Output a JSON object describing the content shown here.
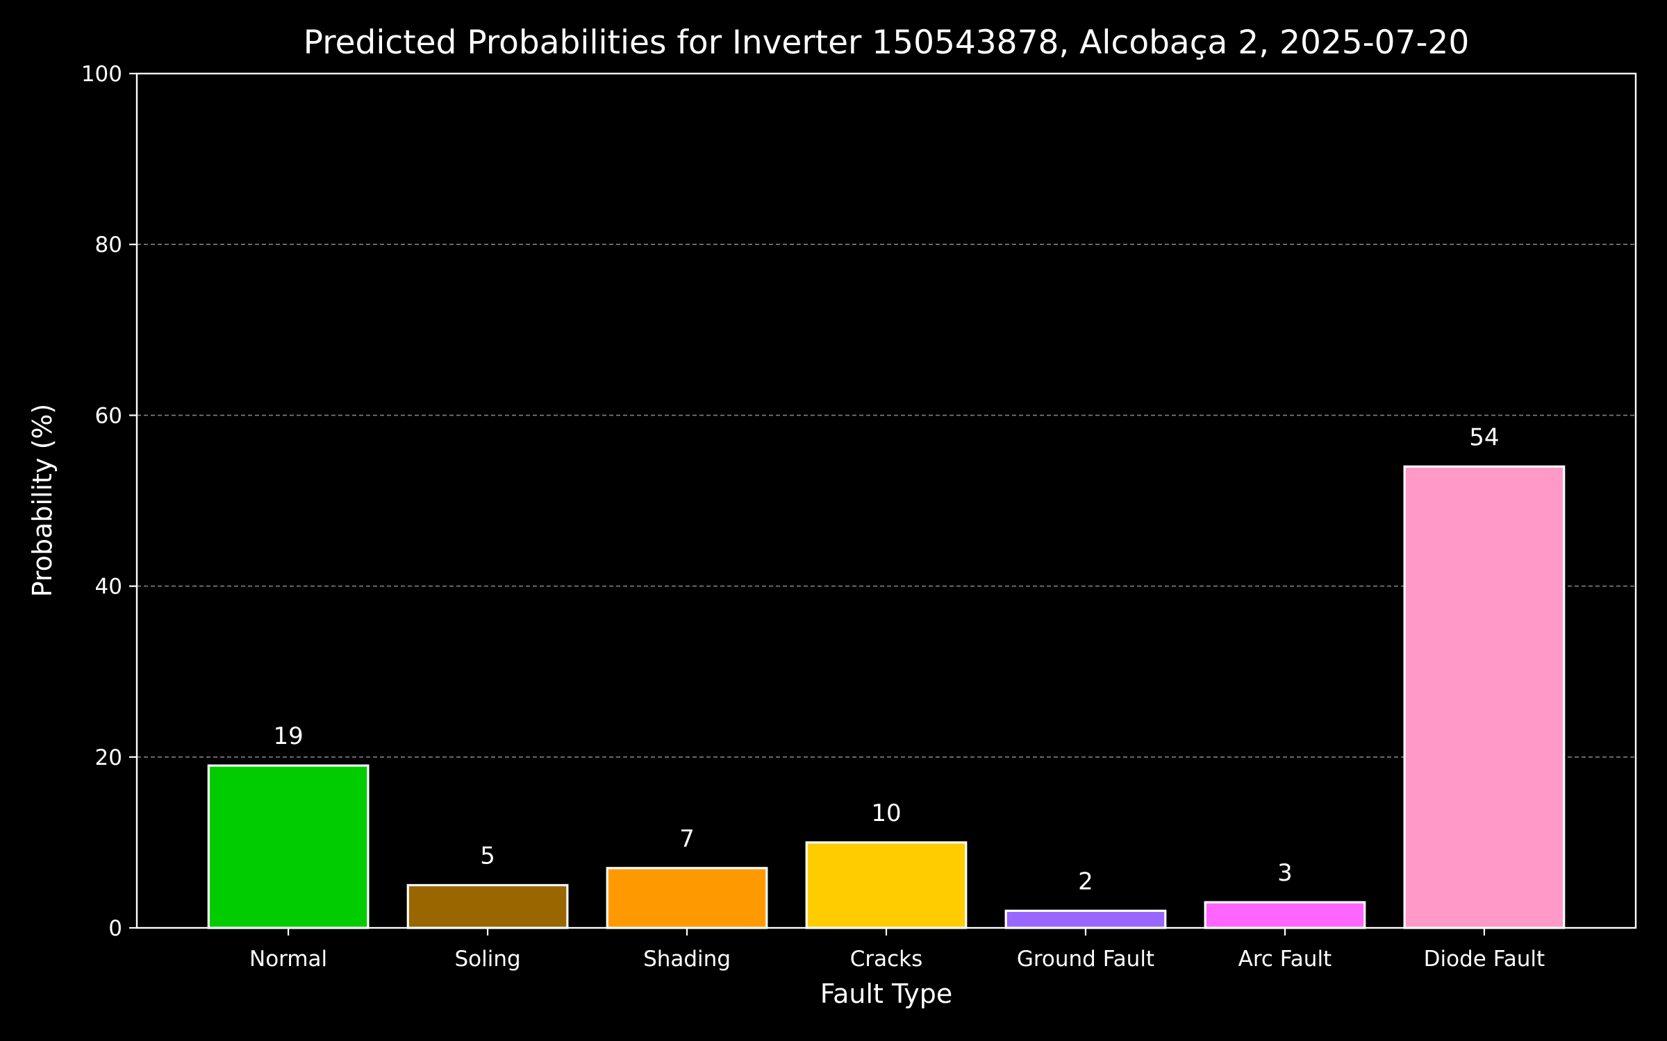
{
  "chart_data": {
    "type": "bar",
    "title": "Predicted Probabilities for Inverter 150543878, Alcobaça 2, 2025-07-20",
    "xlabel": "Fault Type",
    "ylabel": "Probability (%)",
    "categories": [
      "Normal",
      "Soling",
      "Shading",
      "Cracks",
      "Ground Fault",
      "Arc Fault",
      "Diode Fault"
    ],
    "values": [
      19,
      5,
      7,
      10,
      2,
      3,
      54
    ],
    "data_labels": [
      "19",
      "5",
      "7",
      "10",
      "2",
      "3",
      "54"
    ],
    "colors": [
      "#00cc00",
      "#996600",
      "#ff9900",
      "#ffcc00",
      "#9966ff",
      "#ff66ff",
      "#ff99c8"
    ],
    "ylim": [
      0,
      100
    ],
    "yticks": [
      0,
      20,
      40,
      60,
      80,
      100
    ],
    "ytick_labels": [
      "0",
      "20",
      "40",
      "60",
      "80",
      "100"
    ],
    "grid": "y-dashed",
    "background": "#000000",
    "foreground": "#ffffff",
    "grid_color": "#808080"
  }
}
